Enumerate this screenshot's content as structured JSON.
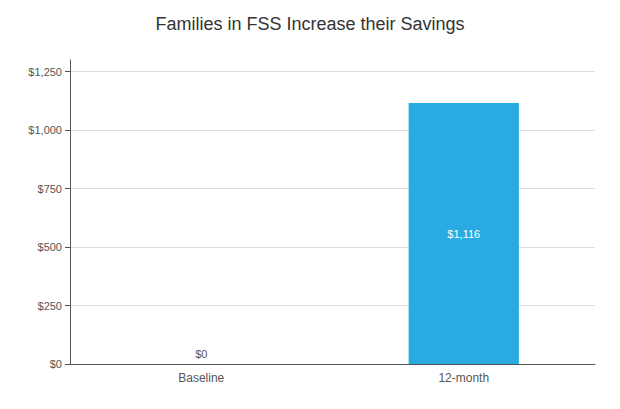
{
  "chart_data": {
    "type": "bar",
    "title": "Families in FSS Increase their Savings",
    "categories": [
      "Baseline",
      "12-month"
    ],
    "values": [
      0,
      1116
    ],
    "value_labels": [
      "$0",
      "$1,116"
    ],
    "data_labels": true,
    "color": "#29abe2",
    "ylim": [
      0,
      1300
    ],
    "yticks": [
      {
        "value": 0,
        "label": "$0"
      },
      {
        "value": 250,
        "label": "$250"
      },
      {
        "value": 500,
        "label": "$500"
      },
      {
        "value": 750,
        "label": "$750"
      },
      {
        "value": 1000,
        "label": "$1,000"
      },
      {
        "value": 1250,
        "label": "$1,250"
      }
    ],
    "grid": true
  }
}
